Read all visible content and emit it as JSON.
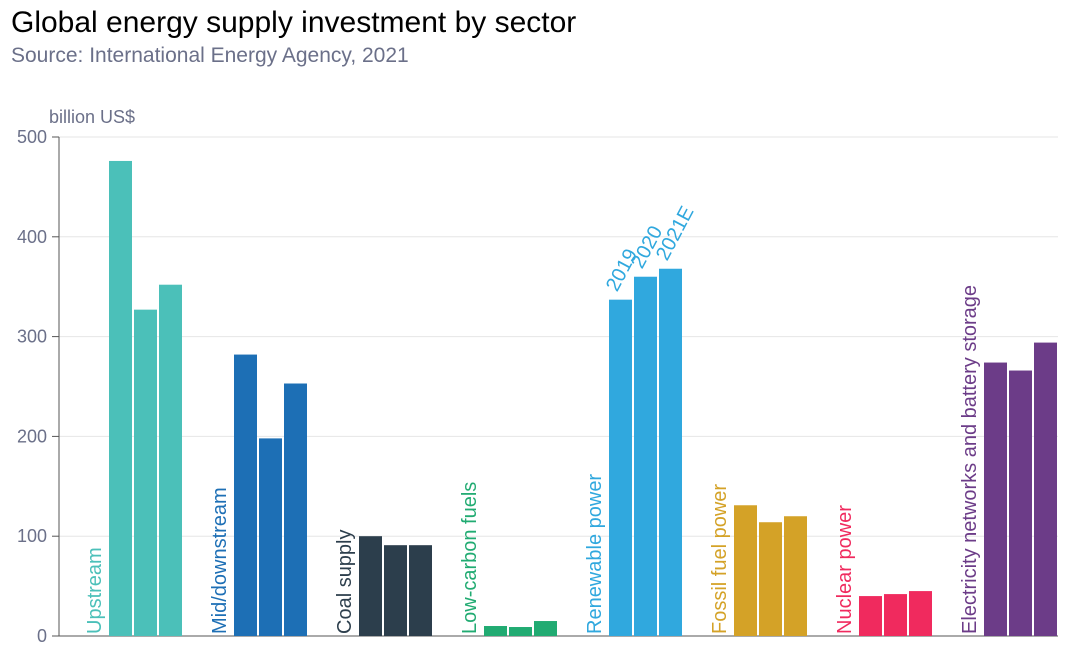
{
  "title": "Global energy supply investment by sector",
  "subtitle": "Source: International Energy Agency, 2021",
  "chart_data": {
    "type": "bar",
    "title": "Global energy supply investment by sector",
    "subtitle": "Source: International Energy Agency, 2021",
    "ylabel": "billion US$",
    "xlabel": "",
    "ylim": [
      0,
      500
    ],
    "yticks": [
      0,
      100,
      200,
      300,
      400,
      500
    ],
    "grid": true,
    "series_names": [
      "2019",
      "2020",
      "2021E"
    ],
    "categories": [
      {
        "name": "Upstream",
        "color": "#4bc0b9",
        "values": [
          476,
          327,
          352
        ]
      },
      {
        "name": "Mid/downstream",
        "color": "#1d6fb5",
        "values": [
          282,
          198,
          253
        ]
      },
      {
        "name": "Coal supply",
        "color": "#2c3e4c",
        "values": [
          100,
          91,
          91
        ]
      },
      {
        "name": "Low-carbon fuels",
        "color": "#21ab72",
        "values": [
          10,
          9,
          15
        ]
      },
      {
        "name": "Renewable power",
        "color": "#30a8de",
        "values": [
          337,
          360,
          368
        ]
      },
      {
        "name": "Fossil fuel power",
        "color": "#d4a227",
        "values": [
          131,
          114,
          120
        ]
      },
      {
        "name": "Nuclear power",
        "color": "#f02a5e",
        "values": [
          40,
          42,
          45
        ]
      },
      {
        "name": "Electricity networks and battery storage",
        "color": "#6c3c88",
        "values": [
          274,
          266,
          294
        ]
      }
    ],
    "year_label_category": 4,
    "year_label_color": "#30a8de"
  }
}
